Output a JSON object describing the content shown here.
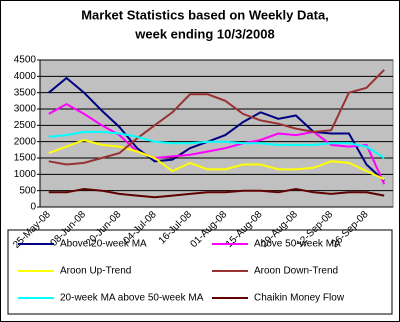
{
  "chart_data": {
    "type": "line",
    "title": "Market Statistics based on Weekly Data,",
    "subtitle": "week ending 10/3/2008",
    "categories": [
      "25-May-08",
      null,
      "08-Jun-08",
      null,
      "20-Jun-08",
      null,
      "04-Jul-08",
      null,
      "16-Jul-08",
      null,
      "01-Aug-08",
      null,
      "15-Aug-08",
      null,
      "29-Aug-08",
      null,
      "12-Sep-08",
      null,
      "26-Sep-08",
      null
    ],
    "series": [
      {
        "name": "Above 20-week MA",
        "color": "#000080",
        "values": [
          3500,
          3950,
          3500,
          2950,
          2450,
          1800,
          1400,
          1450,
          1800,
          2000,
          2200,
          2600,
          2900,
          2700,
          2800,
          2300,
          2250,
          2250,
          1300,
          800
        ]
      },
      {
        "name": "Above 50-week MA",
        "color": "#ff00ff",
        "values": [
          2850,
          3150,
          2850,
          2500,
          2200,
          1700,
          1500,
          1550,
          1600,
          1700,
          1800,
          1950,
          2050,
          2250,
          2200,
          2300,
          1900,
          1850,
          1900,
          700
        ]
      },
      {
        "name": "Aroon Up-Trend",
        "color": "#ffff00",
        "values": [
          1650,
          1850,
          2050,
          1900,
          1850,
          1700,
          1500,
          1100,
          1350,
          1150,
          1150,
          1300,
          1300,
          1150,
          1150,
          1200,
          1400,
          1350,
          1100,
          850
        ]
      },
      {
        "name": "Aroon Down-Trend",
        "color": "#993333",
        "values": [
          1400,
          1300,
          1350,
          1500,
          1650,
          2100,
          2500,
          2900,
          3450,
          3450,
          3250,
          2850,
          2650,
          2550,
          2400,
          2300,
          2350,
          3500,
          3650,
          4200
        ]
      },
      {
        "name": "20-week MA above 50-week MA",
        "color": "#00ffff",
        "values": [
          2150,
          2200,
          2300,
          2300,
          2250,
          2150,
          2000,
          1950,
          1950,
          2000,
          2000,
          1950,
          1950,
          1900,
          1900,
          1900,
          1950,
          1950,
          1850,
          1500
        ]
      },
      {
        "name": "Chaikin Money Flow",
        "color": "#600000",
        "values": [
          450,
          450,
          550,
          500,
          400,
          350,
          300,
          350,
          400,
          450,
          450,
          500,
          500,
          450,
          550,
          450,
          400,
          450,
          450,
          350
        ]
      }
    ],
    "ylim": [
      0,
      4500
    ],
    "yticks": [
      0,
      500,
      1000,
      1500,
      2000,
      2500,
      3000,
      3500,
      4000,
      4500
    ],
    "grid": true
  }
}
